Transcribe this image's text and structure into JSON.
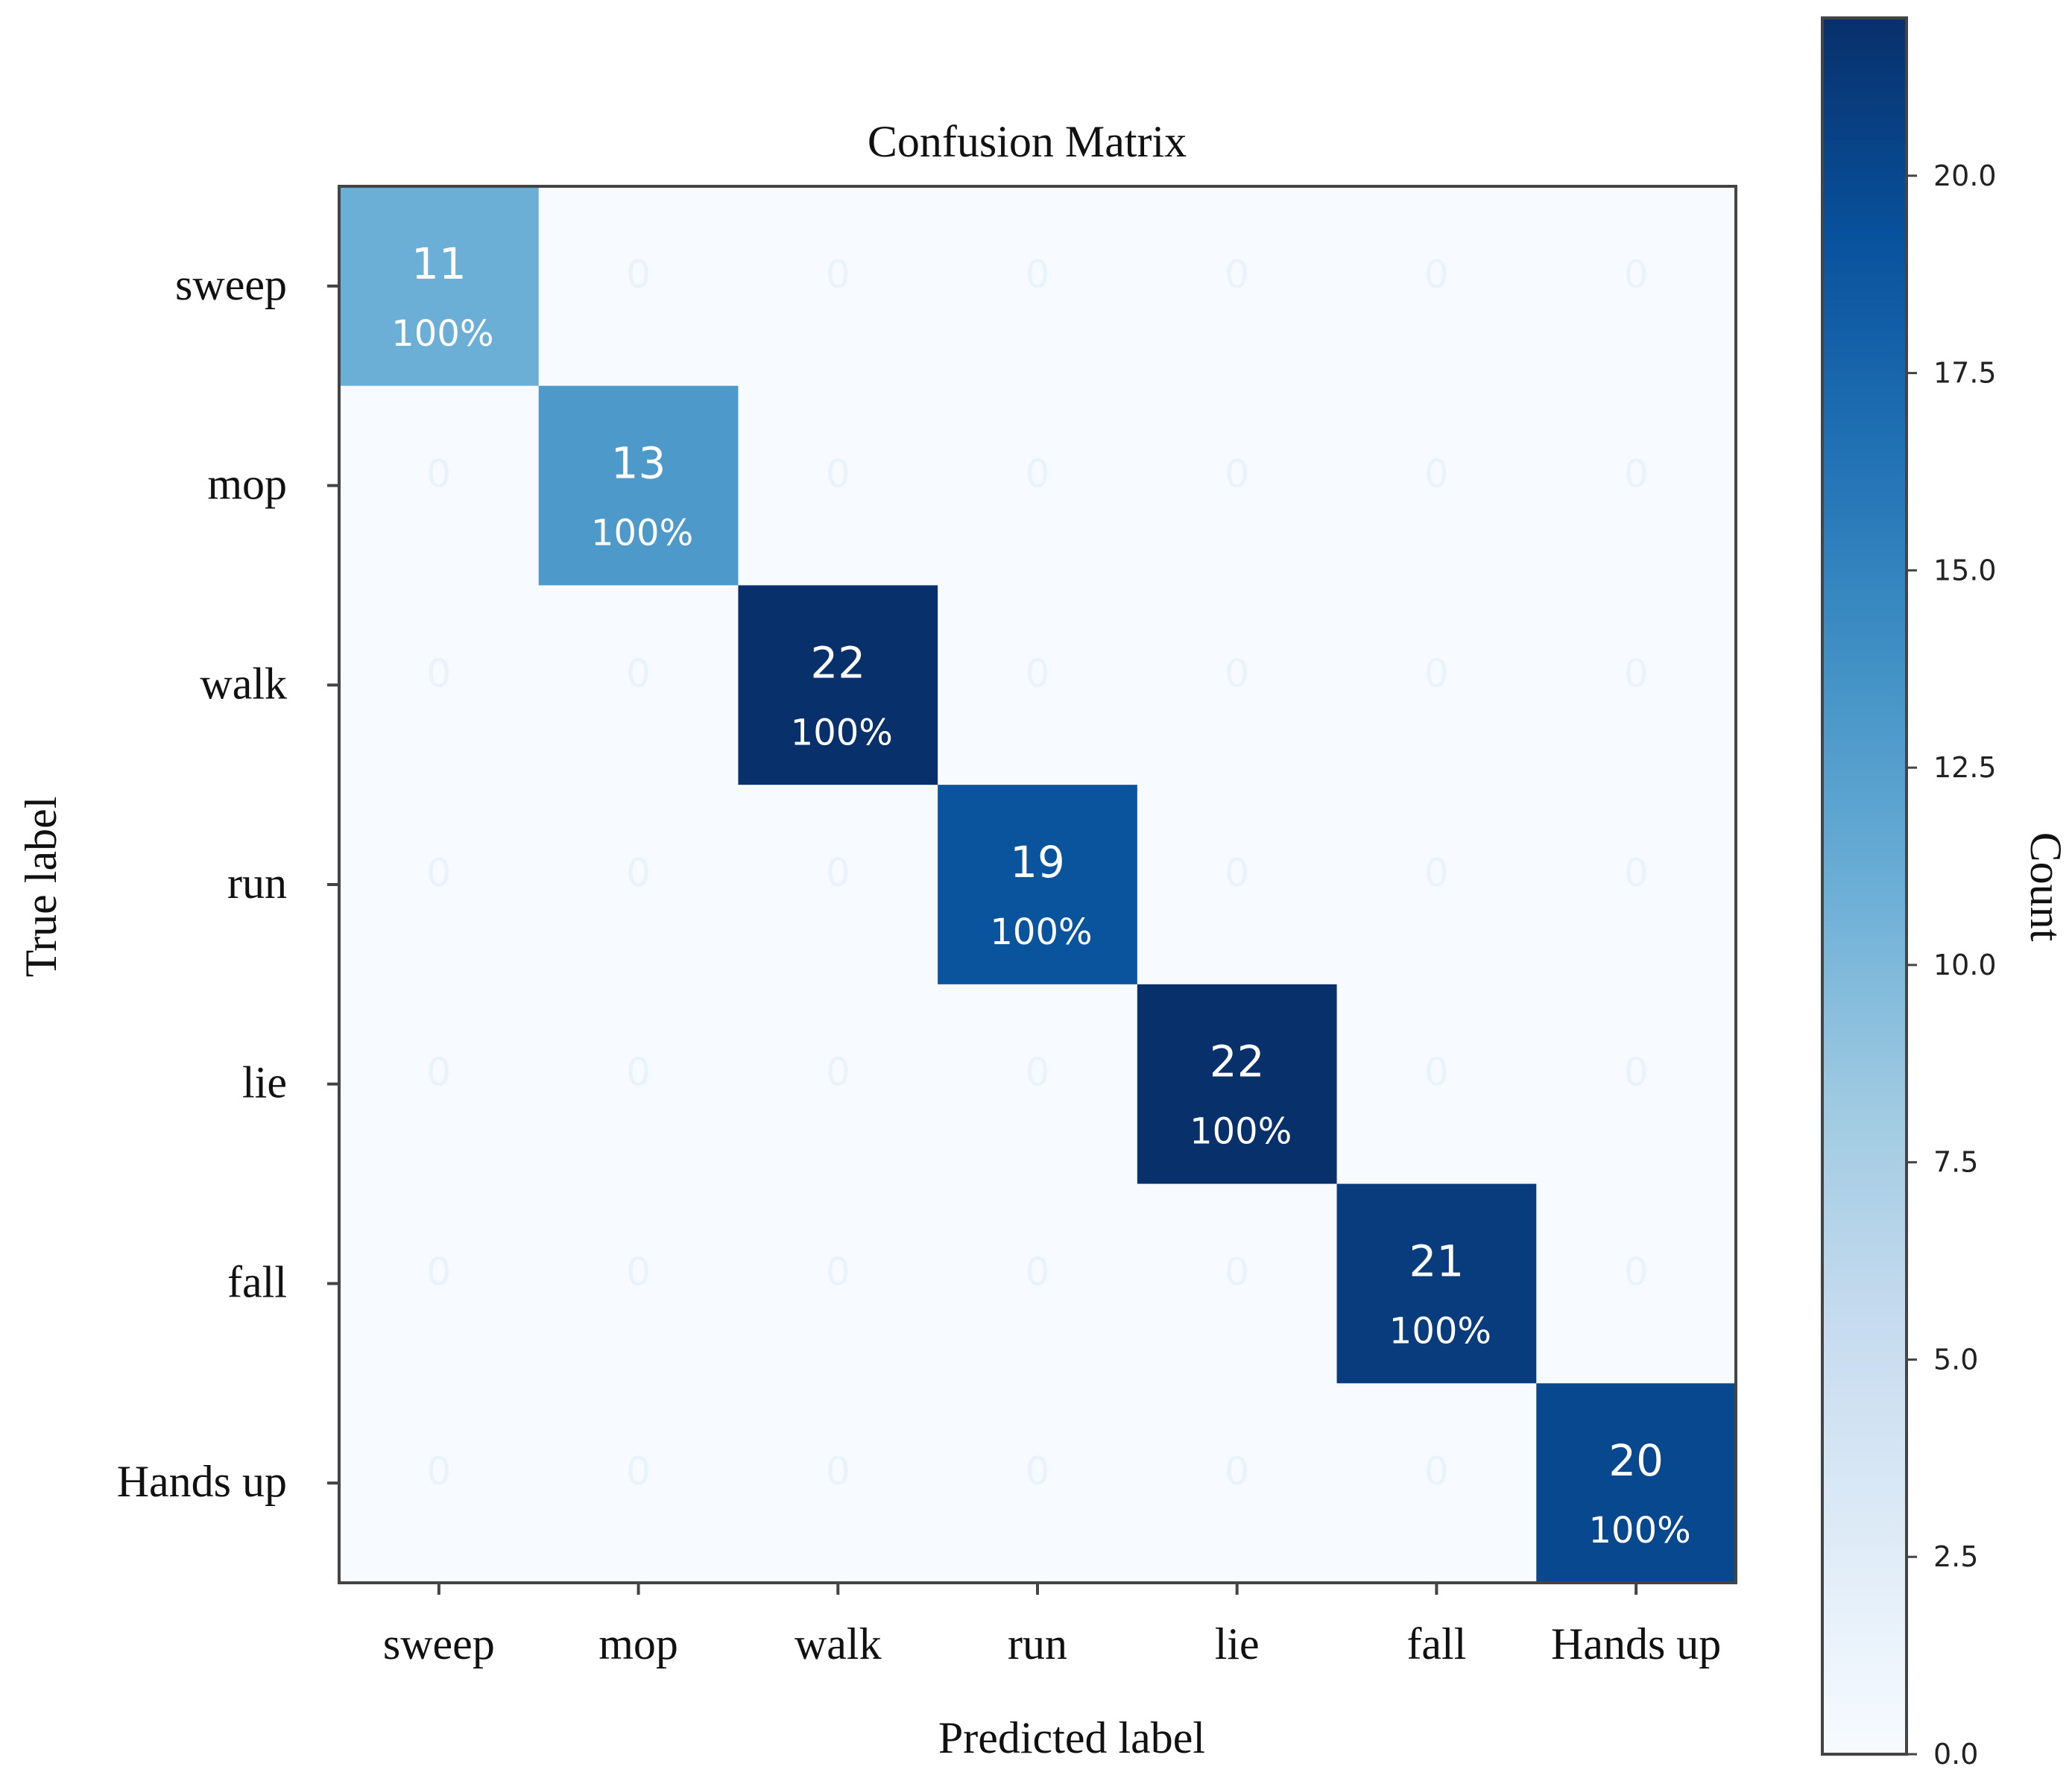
{
  "chart_data": {
    "type": "heatmap",
    "title": "Confusion Matrix",
    "xlabel": "Predicted label",
    "ylabel": "True label",
    "x_categories": [
      "sweep",
      "mop",
      "walk",
      "run",
      "lie",
      "fall",
      "Hands up"
    ],
    "y_categories": [
      "sweep",
      "mop",
      "walk",
      "run",
      "lie",
      "fall",
      "Hands up"
    ],
    "matrix": [
      [
        11,
        0,
        0,
        0,
        0,
        0,
        0
      ],
      [
        0,
        13,
        0,
        0,
        0,
        0,
        0
      ],
      [
        0,
        0,
        22,
        0,
        0,
        0,
        0
      ],
      [
        0,
        0,
        0,
        19,
        0,
        0,
        0
      ],
      [
        0,
        0,
        0,
        0,
        22,
        0,
        0
      ],
      [
        0,
        0,
        0,
        0,
        0,
        21,
        0
      ],
      [
        0,
        0,
        0,
        0,
        0,
        0,
        20
      ]
    ],
    "diagonal_percent_labels": [
      "100%",
      "100%",
      "100%",
      "100%",
      "100%",
      "100%",
      "100%"
    ],
    "colorbar": {
      "label": "Count",
      "range": [
        0,
        22
      ],
      "ticks": [
        0.0,
        2.5,
        5.0,
        7.5,
        10.0,
        12.5,
        15.0,
        17.5,
        20.0
      ],
      "tick_labels": [
        "0.0",
        "2.5",
        "5.0",
        "7.5",
        "10.0",
        "12.5",
        "15.0",
        "17.5",
        "20.0"
      ],
      "colormap": "Blues"
    },
    "grid": false
  }
}
